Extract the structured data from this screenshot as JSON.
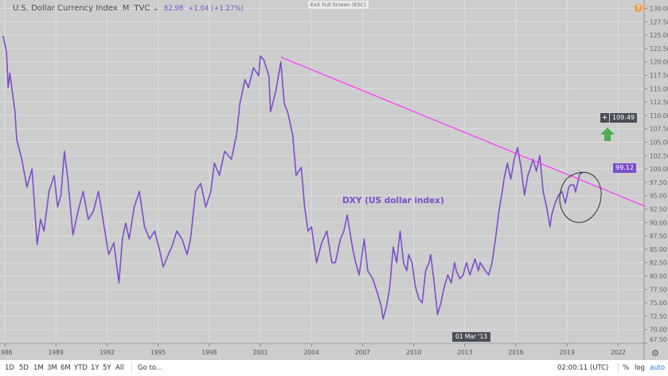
{
  "header": {
    "symbol": "U.S. Dollar Currency Index",
    "interval": "M",
    "exchange": "TVC",
    "last": "82.98",
    "change": "+1.04 (+1.27%)",
    "exit_fullscreen": "Exit Full Screen (ESC)",
    "warning_icon": "!"
  },
  "annotation": {
    "text": "DXY (US dollar index)",
    "arrow": "up-arrow-green",
    "circle": "highlight-circle"
  },
  "price_labels": {
    "crosshair": "109.49",
    "last": "99.12",
    "crosshair_date": "01 Mar '13"
  },
  "bottombar": {
    "ranges": [
      "1D",
      "5D",
      "1M",
      "3M",
      "6M",
      "YTD",
      "1Y",
      "5Y",
      "All"
    ],
    "goto": "Go to...",
    "time": "02:00:11 (UTC)",
    "percent": "%",
    "log": "log",
    "auto": "auto"
  },
  "colors": {
    "series": "#7b4fc9",
    "trendline": "#ff33ff",
    "arrow": "#4caf50",
    "last_tag": "#7b4fc9",
    "crosshair_tag": "#4a4f57"
  },
  "chart_data": {
    "type": "line",
    "title": "U.S. Dollar Currency Index",
    "xlabel": "",
    "ylabel": "",
    "xlim": [
      1985.8,
      2023.6
    ],
    "ylim": [
      66.6,
      131.5
    ],
    "x_ticks": [
      "1986",
      "1989",
      "1992",
      "1995",
      "1998",
      "2001",
      "2004",
      "2007",
      "2010",
      "2013",
      "2016",
      "2019",
      "2022"
    ],
    "y_ticks": [
      "67.50",
      "70.00",
      "72.50",
      "75.00",
      "77.50",
      "80.00",
      "82.50",
      "85.00",
      "87.50",
      "90.00",
      "92.50",
      "95.00",
      "97.50",
      "100.00",
      "102.50",
      "105.00",
      "107.50",
      "110.00",
      "112.50",
      "115.00",
      "117.50",
      "120.00",
      "122.50",
      "125.00",
      "127.50",
      "130.00"
    ],
    "grid": true,
    "series": [
      {
        "name": "DXY",
        "points": [
          [
            1985.9,
            124.9
          ],
          [
            1986.1,
            121.9
          ],
          [
            1986.2,
            115.2
          ],
          [
            1986.3,
            117.9
          ],
          [
            1986.6,
            110.7
          ],
          [
            1986.7,
            105.5
          ],
          [
            1987.0,
            101.8
          ],
          [
            1987.3,
            96.6
          ],
          [
            1987.6,
            100.0
          ],
          [
            1987.9,
            85.9
          ],
          [
            1988.1,
            90.6
          ],
          [
            1988.3,
            88.4
          ],
          [
            1988.6,
            95.8
          ],
          [
            1988.9,
            98.8
          ],
          [
            1989.1,
            92.9
          ],
          [
            1989.3,
            95.1
          ],
          [
            1989.5,
            103.3
          ],
          [
            1989.7,
            98.1
          ],
          [
            1990.0,
            87.7
          ],
          [
            1990.3,
            92.1
          ],
          [
            1990.6,
            95.8
          ],
          [
            1990.9,
            90.6
          ],
          [
            1991.2,
            92.1
          ],
          [
            1991.5,
            95.8
          ],
          [
            1991.8,
            89.9
          ],
          [
            1992.1,
            84.0
          ],
          [
            1992.4,
            86.2
          ],
          [
            1992.7,
            78.7
          ],
          [
            1992.9,
            86.9
          ],
          [
            1993.1,
            89.9
          ],
          [
            1993.3,
            86.9
          ],
          [
            1993.6,
            92.9
          ],
          [
            1993.9,
            95.8
          ],
          [
            1994.2,
            89.2
          ],
          [
            1994.5,
            86.9
          ],
          [
            1994.8,
            88.4
          ],
          [
            1995.1,
            84.7
          ],
          [
            1995.3,
            81.7
          ],
          [
            1995.6,
            84.0
          ],
          [
            1995.8,
            85.4
          ],
          [
            1996.1,
            88.4
          ],
          [
            1996.4,
            86.9
          ],
          [
            1996.7,
            84.0
          ],
          [
            1996.9,
            86.9
          ],
          [
            1997.2,
            95.8
          ],
          [
            1997.5,
            97.3
          ],
          [
            1997.8,
            92.9
          ],
          [
            1998.1,
            95.8
          ],
          [
            1998.3,
            101.1
          ],
          [
            1998.6,
            98.8
          ],
          [
            1998.9,
            103.3
          ],
          [
            1999.3,
            101.8
          ],
          [
            1999.6,
            106.3
          ],
          [
            1999.8,
            112.2
          ],
          [
            2000.1,
            116.7
          ],
          [
            2000.3,
            115.2
          ],
          [
            2000.6,
            118.9
          ],
          [
            2000.9,
            117.4
          ],
          [
            2001.0,
            121.1
          ],
          [
            2001.2,
            120.4
          ],
          [
            2001.5,
            117.4
          ],
          [
            2001.6,
            110.7
          ],
          [
            2001.9,
            114.4
          ],
          [
            2002.2,
            120.0
          ],
          [
            2002.4,
            112.2
          ],
          [
            2002.6,
            110.7
          ],
          [
            2002.9,
            106.3
          ],
          [
            2003.1,
            98.8
          ],
          [
            2003.4,
            100.3
          ],
          [
            2003.6,
            92.9
          ],
          [
            2003.8,
            88.4
          ],
          [
            2004.0,
            89.2
          ],
          [
            2004.3,
            82.5
          ],
          [
            2004.6,
            86.2
          ],
          [
            2004.9,
            88.4
          ],
          [
            2005.2,
            82.5
          ],
          [
            2005.4,
            82.5
          ],
          [
            2005.7,
            86.9
          ],
          [
            2005.9,
            88.4
          ],
          [
            2006.1,
            91.4
          ],
          [
            2006.4,
            85.4
          ],
          [
            2006.6,
            82.5
          ],
          [
            2006.8,
            80.2
          ],
          [
            2007.1,
            86.9
          ],
          [
            2007.3,
            81.0
          ],
          [
            2007.6,
            79.5
          ],
          [
            2007.9,
            76.5
          ],
          [
            2008.1,
            74.3
          ],
          [
            2008.2,
            72.0
          ],
          [
            2008.4,
            74.3
          ],
          [
            2008.6,
            78.0
          ],
          [
            2008.8,
            85.4
          ],
          [
            2009.0,
            82.5
          ],
          [
            2009.2,
            88.4
          ],
          [
            2009.4,
            82.5
          ],
          [
            2009.6,
            81.0
          ],
          [
            2009.7,
            84.0
          ],
          [
            2009.9,
            82.5
          ],
          [
            2010.1,
            78.0
          ],
          [
            2010.3,
            75.8
          ],
          [
            2010.5,
            75.0
          ],
          [
            2010.7,
            81.0
          ],
          [
            2010.9,
            82.5
          ],
          [
            2011.0,
            84.0
          ],
          [
            2011.2,
            78.7
          ],
          [
            2011.4,
            72.8
          ],
          [
            2011.6,
            75.0
          ],
          [
            2011.8,
            78.0
          ],
          [
            2012.0,
            80.2
          ],
          [
            2012.2,
            78.7
          ],
          [
            2012.4,
            82.5
          ],
          [
            2012.5,
            81.0
          ],
          [
            2012.7,
            79.5
          ],
          [
            2012.9,
            80.2
          ],
          [
            2013.1,
            82.5
          ],
          [
            2013.3,
            80.2
          ],
          [
            2013.6,
            83.2
          ],
          [
            2013.8,
            81.0
          ],
          [
            2013.9,
            82.5
          ],
          [
            2014.2,
            81.0
          ],
          [
            2014.4,
            80.2
          ],
          [
            2014.6,
            82.5
          ],
          [
            2014.8,
            86.9
          ],
          [
            2015.0,
            92.1
          ],
          [
            2015.2,
            95.8
          ],
          [
            2015.3,
            98.1
          ],
          [
            2015.5,
            101.1
          ],
          [
            2015.7,
            98.1
          ],
          [
            2015.9,
            101.8
          ],
          [
            2016.1,
            104.0
          ],
          [
            2016.3,
            100.3
          ],
          [
            2016.5,
            95.1
          ],
          [
            2016.7,
            98.8
          ],
          [
            2016.8,
            99.6
          ],
          [
            2017.0,
            101.8
          ],
          [
            2017.2,
            99.6
          ],
          [
            2017.4,
            102.5
          ],
          [
            2017.6,
            95.8
          ],
          [
            2017.8,
            92.9
          ],
          [
            2018.0,
            89.2
          ],
          [
            2018.1,
            91.4
          ],
          [
            2018.3,
            93.6
          ],
          [
            2018.5,
            95.1
          ],
          [
            2018.7,
            95.8
          ],
          [
            2018.9,
            93.6
          ],
          [
            2019.1,
            96.6
          ],
          [
            2019.2,
            97.0
          ],
          [
            2019.4,
            97.0
          ],
          [
            2019.5,
            95.7
          ],
          [
            2019.7,
            98.5
          ],
          [
            2019.8,
            99.4
          ],
          [
            2019.9,
            99.1
          ]
        ]
      }
    ],
    "trendline": {
      "from": [
        2002.2,
        120.9
      ],
      "to": [
        2023.6,
        93.0
      ]
    }
  }
}
